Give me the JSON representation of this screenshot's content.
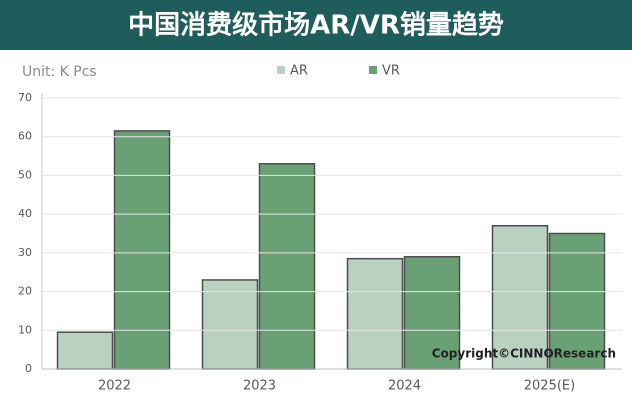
{
  "chart_data": {
    "type": "bar",
    "title": "中国消费级市场AR/VR销量趋势",
    "unit": "Unit:  K Pcs",
    "categories": [
      "2022",
      "2023",
      "2024",
      "2025(E)"
    ],
    "series": [
      {
        "name": "AR",
        "color": "#b9d1bf",
        "values": [
          9.5,
          23,
          28.5,
          37
        ]
      },
      {
        "name": "VR",
        "color": "#6aa174",
        "values": [
          61.5,
          53,
          29,
          35
        ]
      }
    ],
    "ylim": [
      0,
      70
    ],
    "yticks": [
      0,
      10,
      20,
      30,
      40,
      50,
      60,
      70
    ],
    "grid": true,
    "annotation": "Copyright©CINNOResearch"
  }
}
